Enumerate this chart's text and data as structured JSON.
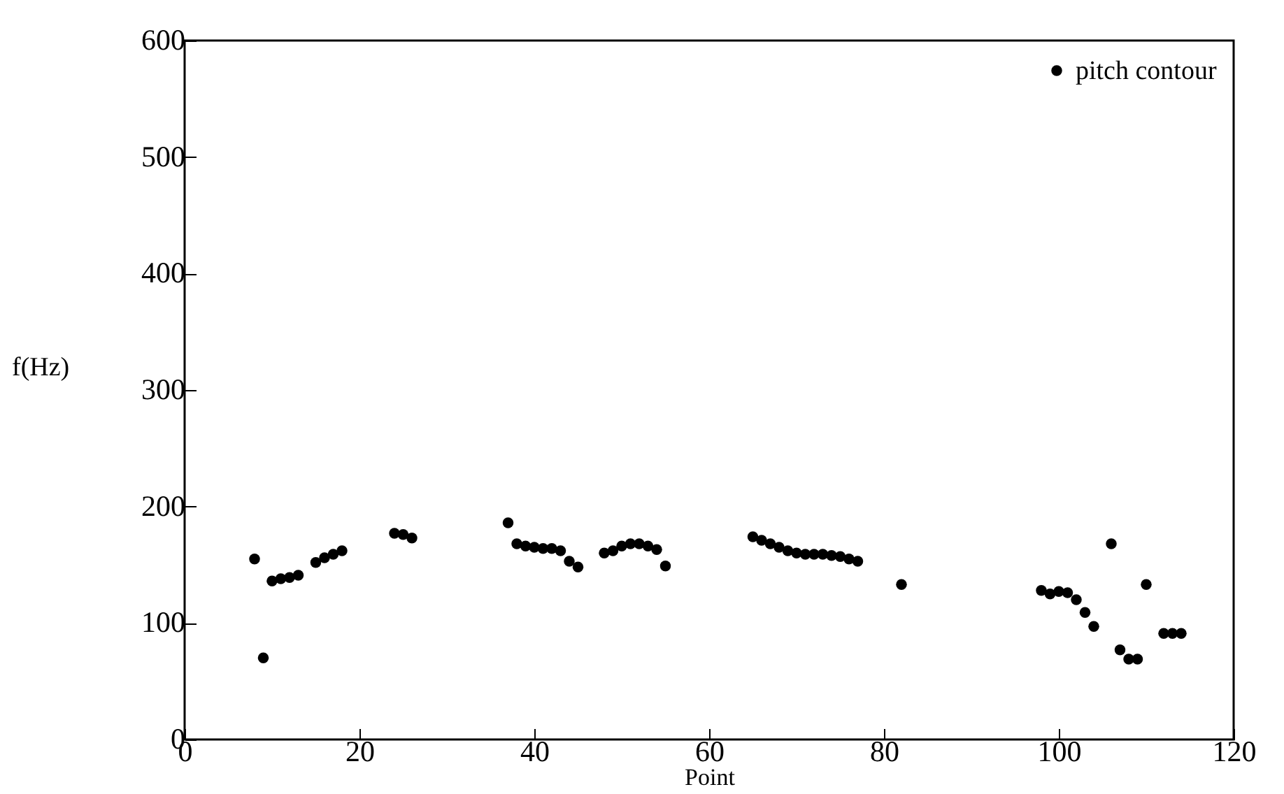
{
  "chart_data": {
    "type": "scatter",
    "xlabel": "Point",
    "ylabel": "f(Hz)",
    "xlim": [
      0,
      120
    ],
    "ylim": [
      0,
      600
    ],
    "xticks": [
      0,
      20,
      40,
      60,
      80,
      100,
      120
    ],
    "yticks": [
      0,
      100,
      200,
      300,
      400,
      500,
      600
    ],
    "legend": "top right",
    "marker": "circle",
    "grid": false,
    "series": [
      {
        "name": "pitch contour",
        "color": "#000000",
        "x": [
          8,
          9,
          10,
          11,
          12,
          13,
          15,
          16,
          17,
          18,
          24,
          25,
          26,
          37,
          38,
          39,
          40,
          41,
          42,
          43,
          44,
          45,
          48,
          49,
          50,
          51,
          52,
          53,
          54,
          55,
          65,
          66,
          67,
          68,
          69,
          70,
          71,
          72,
          73,
          74,
          75,
          76,
          77,
          82,
          98,
          99,
          100,
          101,
          102,
          103,
          104,
          106,
          107,
          108,
          109,
          110,
          112,
          113,
          114
        ],
        "values": [
          155,
          70,
          136,
          138,
          139,
          141,
          152,
          156,
          159,
          162,
          177,
          176,
          173,
          186,
          168,
          166,
          165,
          164,
          164,
          162,
          153,
          148,
          160,
          162,
          166,
          168,
          168,
          166,
          163,
          149,
          174,
          171,
          168,
          165,
          162,
          160,
          159,
          159,
          159,
          158,
          157,
          155,
          153,
          133,
          128,
          125,
          127,
          126,
          120,
          109,
          97,
          168,
          77,
          69,
          69,
          133,
          91,
          91,
          91
        ]
      }
    ]
  }
}
